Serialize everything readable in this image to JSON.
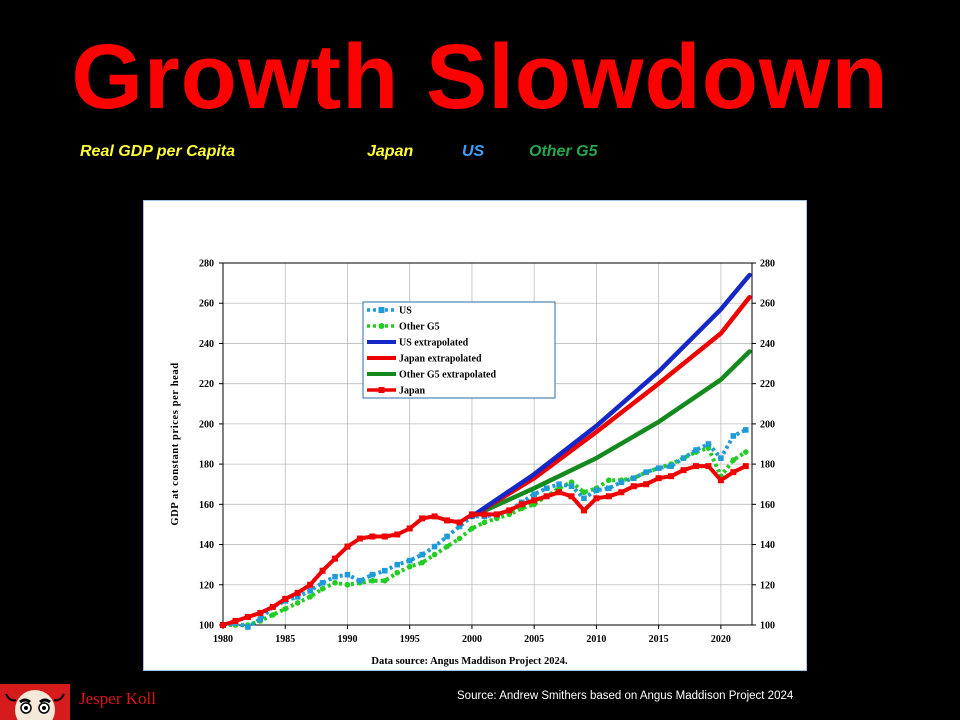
{
  "page": {
    "title": "Growth Slowdown",
    "subtitle": {
      "label": "Real GDP per Capita",
      "japan": "Japan",
      "us": "US",
      "other": "Other G5"
    },
    "author": "Jesper Koll",
    "source": "Source: Andrew Smithers based on Angus Maddison Project 2024"
  },
  "colors": {
    "title": "#ff0000",
    "subtitle_label": "#ffff33",
    "subtitle_japan": "#ffff33",
    "subtitle_us": "#3aa0ff",
    "subtitle_other": "#21a84a",
    "us": "#1f9bd7",
    "us_extrap": "#1428c8",
    "other": "#22cc22",
    "other_extrap": "#148a1e",
    "japan": "#ee0000"
  },
  "chart_data": {
    "type": "line",
    "ylabel": "GDP at constant prices per head",
    "xlabel": "Data source: Angus Maddison Project 2024.",
    "xlim": [
      1980,
      2022.5
    ],
    "ylim": [
      100,
      280
    ],
    "xticks": [
      1980,
      1985,
      1990,
      1995,
      2000,
      2005,
      2010,
      2015,
      2020
    ],
    "yticks": [
      100,
      120,
      140,
      160,
      180,
      200,
      220,
      240,
      260,
      280
    ],
    "legend_position": "upper-left-center",
    "series": [
      {
        "name": "US",
        "key": "us",
        "marker": "square",
        "style": "dotted-marker",
        "x": [
          1980,
          1981,
          1982,
          1983,
          1984,
          1985,
          1986,
          1987,
          1988,
          1989,
          1990,
          1991,
          1992,
          1993,
          1994,
          1995,
          1996,
          1997,
          1998,
          1999,
          2000,
          2001,
          2002,
          2003,
          2004,
          2005,
          2006,
          2007,
          2008,
          2009,
          2010,
          2011,
          2012,
          2013,
          2014,
          2015,
          2016,
          2017,
          2018,
          2019,
          2020,
          2021,
          2022
        ],
        "y": [
          100,
          101,
          99,
          103,
          109,
          112,
          114,
          117,
          121,
          124,
          125,
          122,
          125,
          127,
          130,
          132,
          135,
          139,
          144,
          149,
          154,
          154,
          155,
          157,
          161,
          165,
          168,
          170,
          169,
          163,
          167,
          168,
          171,
          173,
          176,
          178,
          179,
          183,
          187,
          190,
          183,
          194,
          197
        ]
      },
      {
        "name": "Other G5",
        "key": "other",
        "marker": "circle",
        "style": "dotted-marker",
        "x": [
          1980,
          1981,
          1982,
          1983,
          1984,
          1985,
          1986,
          1987,
          1988,
          1989,
          1990,
          1991,
          1992,
          1993,
          1994,
          1995,
          1996,
          1997,
          1998,
          1999,
          2000,
          2001,
          2002,
          2003,
          2004,
          2005,
          2006,
          2007,
          2008,
          2009,
          2010,
          2011,
          2012,
          2013,
          2014,
          2015,
          2016,
          2017,
          2018,
          2019,
          2020,
          2021,
          2022
        ],
        "y": [
          100,
          100,
          100,
          102,
          105,
          108,
          111,
          114,
          118,
          121,
          120,
          121,
          122,
          122,
          126,
          129,
          131,
          135,
          139,
          143,
          148,
          151,
          153,
          155,
          158,
          160,
          164,
          168,
          171,
          166,
          168,
          172,
          172,
          173,
          176,
          178,
          180,
          183,
          186,
          188,
          174,
          182,
          186
        ]
      },
      {
        "name": "US extrapolated",
        "key": "us_extrap",
        "marker": "none",
        "style": "solid",
        "x": [
          2000,
          2005,
          2010,
          2015,
          2020,
          2022.3
        ],
        "y": [
          154,
          175,
          199,
          226,
          257,
          274
        ]
      },
      {
        "name": "Japan extrapolated",
        "key": "japan",
        "marker": "none",
        "style": "solid",
        "x": [
          2000,
          2005,
          2010,
          2015,
          2020,
          2022.3
        ],
        "y": [
          154,
          173,
          196,
          220,
          245,
          263
        ]
      },
      {
        "name": "Other G5 extrapolated",
        "key": "other_extrap",
        "marker": "none",
        "style": "solid",
        "x": [
          2000,
          2005,
          2010,
          2015,
          2020,
          2022.3
        ],
        "y": [
          154,
          168,
          183,
          201,
          222,
          236
        ]
      },
      {
        "name": "Japan",
        "key": "japan",
        "marker": "square",
        "style": "solid-marker",
        "x": [
          1980,
          1981,
          1982,
          1983,
          1984,
          1985,
          1986,
          1987,
          1988,
          1989,
          1990,
          1991,
          1992,
          1993,
          1994,
          1995,
          1996,
          1997,
          1998,
          1999,
          2000,
          2001,
          2002,
          2003,
          2004,
          2005,
          2006,
          2007,
          2008,
          2009,
          2010,
          2011,
          2012,
          2013,
          2014,
          2015,
          2016,
          2017,
          2018,
          2019,
          2020,
          2021,
          2022
        ],
        "y": [
          100,
          102,
          104,
          106,
          109,
          113,
          116,
          120,
          127,
          133,
          139,
          143,
          144,
          144,
          145,
          148,
          153,
          154,
          152,
          151,
          155,
          155,
          155,
          157,
          160,
          162,
          164,
          166,
          164,
          157,
          163,
          164,
          166,
          169,
          170,
          173,
          174,
          177,
          179,
          179,
          172,
          176,
          179
        ]
      }
    ]
  }
}
